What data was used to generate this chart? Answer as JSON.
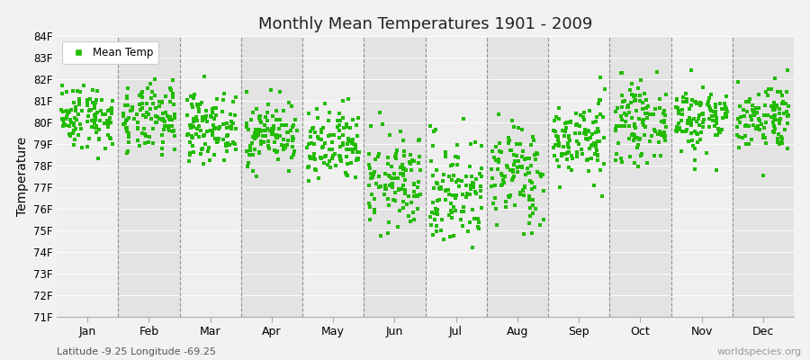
{
  "title": "Monthly Mean Temperatures 1901 - 2009",
  "ylabel": "Temperature",
  "subtitle_left": "Latitude -9.25 Longitude -69.25",
  "subtitle_right": "worldspecies.org",
  "legend_label": "Mean Temp",
  "months": [
    "Jan",
    "Feb",
    "Mar",
    "Apr",
    "May",
    "Jun",
    "Jul",
    "Aug",
    "Sep",
    "Oct",
    "Nov",
    "Dec"
  ],
  "ylim": [
    71,
    84
  ],
  "yticks": [
    71,
    72,
    73,
    74,
    75,
    76,
    77,
    78,
    79,
    80,
    81,
    82,
    83,
    84
  ],
  "ytick_labels": [
    "71F",
    "72F",
    "73F",
    "74F",
    "75F",
    "76F",
    "77F",
    "78F",
    "79F",
    "80F",
    "81F",
    "82F",
    "83F",
    "84F"
  ],
  "bg_color": "#f2f2f2",
  "band_light": "#efefef",
  "band_dark": "#e3e3e3",
  "dot_color": "#22bb00",
  "n_years": 109,
  "seed": 42,
  "monthly_means": [
    80.3,
    80.1,
    79.8,
    79.5,
    78.8,
    77.2,
    76.8,
    77.6,
    79.2,
    80.0,
    80.2,
    80.3
  ],
  "monthly_stds": [
    0.75,
    0.8,
    0.75,
    0.75,
    0.9,
    1.1,
    1.3,
    1.2,
    0.9,
    0.85,
    0.8,
    0.8
  ]
}
